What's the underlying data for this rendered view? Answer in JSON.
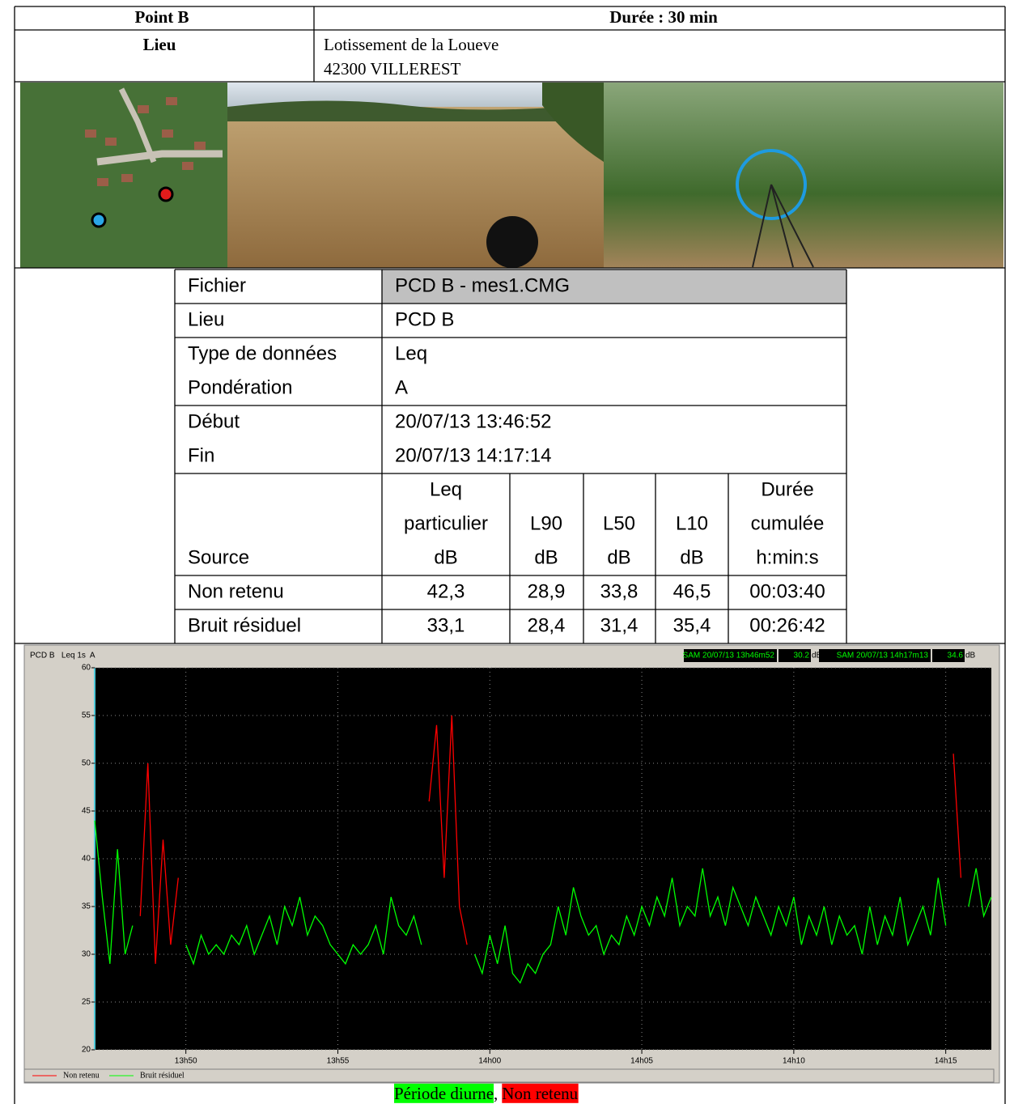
{
  "header": {
    "point": "Point B",
    "duration": "Durée : 30 min",
    "place_label": "Lieu",
    "address": [
      "Lotissement de la Loueve",
      "42300 VILLEREST"
    ]
  },
  "measure_table": {
    "info_rows": [
      [
        "Fichier",
        "PCD B - mes1.CMG"
      ],
      [
        "Lieu",
        "PCD B"
      ],
      [
        "Type de données",
        "Leq"
      ],
      [
        "Pondération",
        "A"
      ],
      [
        "Début",
        "20/07/13 13:46:52"
      ],
      [
        "Fin",
        "20/07/13 14:17:14"
      ]
    ],
    "source_label": "Source",
    "columns": [
      [
        "Leq",
        "particulier",
        "dB"
      ],
      [
        "L90",
        "dB"
      ],
      [
        "L50",
        "dB"
      ],
      [
        "L10",
        "dB"
      ],
      [
        "Durée",
        "cumulée",
        "h:min:s"
      ]
    ],
    "rows": [
      [
        "Non retenu",
        "42,3",
        "28,9",
        "33,8",
        "46,5",
        "00:03:40"
      ],
      [
        "Bruit résiduel",
        "33,1",
        "28,4",
        "31,4",
        "35,4",
        "00:26:42"
      ]
    ]
  },
  "chart_data": {
    "type": "line",
    "title": "PCD B   Leq 1s  A",
    "status": [
      {
        "text": "SAM 20/07/13 13h46m52",
        "value": 30.2,
        "unit": "dB"
      },
      {
        "text": "SAM 20/07/13 14h17m13",
        "value": 34.6,
        "unit": "dB"
      }
    ],
    "x": [
      827,
      827.25,
      827.5,
      827.75,
      828,
      828.25,
      828.5,
      828.75,
      829,
      829.25,
      829.5,
      829.75,
      830,
      830.25,
      830.5,
      830.75,
      831,
      831.25,
      831.5,
      831.75,
      832,
      832.25,
      832.5,
      832.75,
      833,
      833.25,
      833.5,
      833.75,
      834,
      834.25,
      834.5,
      834.75,
      835,
      835.25,
      835.5,
      835.75,
      836,
      836.25,
      836.5,
      836.75,
      837,
      837.25,
      837.5,
      837.75,
      838,
      838.25,
      838.5,
      838.75,
      839,
      839.25,
      839.5,
      839.75,
      840,
      840.25,
      840.5,
      840.75,
      841,
      841.25,
      841.5,
      841.75,
      842,
      842.25,
      842.5,
      842.75,
      843,
      843.25,
      843.5,
      843.75,
      844,
      844.25,
      844.5,
      844.75,
      845,
      845.25,
      845.5,
      845.75,
      846,
      846.25,
      846.5,
      846.75,
      847,
      847.25,
      847.5,
      847.75,
      848,
      848.25,
      848.5,
      848.75,
      849,
      849.25,
      849.5,
      849.75,
      850,
      850.25,
      850.5,
      850.75,
      851,
      851.25,
      851.5,
      851.75,
      852,
      852.25,
      852.5,
      852.75,
      853,
      853.25,
      853.5,
      853.75,
      854,
      854.25,
      854.5,
      854.75,
      855,
      855.25,
      855.5,
      855.75,
      856,
      856.25,
      856.5
    ],
    "series": [
      {
        "name": "Non retenu",
        "color": "#ff0000",
        "values": [
          null,
          null,
          null,
          null,
          null,
          null,
          34,
          50,
          29,
          42,
          31,
          38,
          null,
          null,
          null,
          null,
          null,
          null,
          null,
          null,
          null,
          null,
          null,
          null,
          null,
          null,
          null,
          null,
          null,
          null,
          null,
          null,
          null,
          null,
          null,
          null,
          null,
          null,
          null,
          null,
          null,
          null,
          null,
          null,
          46,
          54,
          38,
          55,
          35,
          31,
          null,
          null,
          null,
          null,
          null,
          null,
          null,
          null,
          null,
          null,
          null,
          null,
          null,
          null,
          null,
          null,
          null,
          null,
          null,
          null,
          null,
          null,
          null,
          null,
          null,
          null,
          null,
          null,
          null,
          null,
          null,
          null,
          null,
          null,
          null,
          null,
          null,
          null,
          null,
          null,
          null,
          null,
          null,
          null,
          null,
          null,
          null,
          null,
          null,
          null,
          null,
          null,
          null,
          null,
          null,
          null,
          null,
          null,
          null,
          null,
          null,
          null,
          null,
          51,
          38,
          null,
          null,
          null,
          null
        ]
      },
      {
        "name": "Bruit résiduel",
        "color": "#00ff00",
        "values": [
          44,
          36,
          29,
          41,
          30,
          33,
          null,
          null,
          null,
          null,
          null,
          null,
          31,
          29,
          32,
          30,
          31,
          30,
          32,
          31,
          33,
          30,
          32,
          34,
          31,
          35,
          33,
          36,
          32,
          34,
          33,
          31,
          30,
          29,
          31,
          30,
          31,
          33,
          30,
          36,
          33,
          32,
          34,
          31,
          null,
          null,
          null,
          null,
          null,
          null,
          30,
          28,
          32,
          29,
          33,
          28,
          27,
          29,
          28,
          30,
          31,
          35,
          32,
          37,
          34,
          32,
          33,
          30,
          32,
          31,
          34,
          32,
          35,
          33,
          36,
          34,
          38,
          33,
          35,
          34,
          39,
          34,
          36,
          33,
          37,
          35,
          33,
          36,
          34,
          32,
          35,
          33,
          36,
          31,
          34,
          32,
          35,
          31,
          34,
          32,
          33,
          30,
          35,
          31,
          34,
          32,
          36,
          31,
          33,
          35,
          32,
          38,
          33,
          null,
          null,
          35,
          39,
          34,
          36
        ]
      }
    ],
    "xlim": [
      827,
      856.5
    ],
    "xticks": [
      {
        "value": 830,
        "label": "13h50"
      },
      {
        "value": 835,
        "label": "13h55"
      },
      {
        "value": 840,
        "label": "14h00"
      },
      {
        "value": 845,
        "label": "14h05"
      },
      {
        "value": 850,
        "label": "14h10"
      },
      {
        "value": 855,
        "label": "14h15"
      }
    ],
    "ylim": [
      20,
      60
    ],
    "yticks": [
      20,
      25,
      30,
      35,
      40,
      45,
      50,
      55,
      60
    ],
    "grid": true
  },
  "caption": {
    "period": "Période diurne",
    "separator": ",",
    "excluded": "Non retenu"
  }
}
